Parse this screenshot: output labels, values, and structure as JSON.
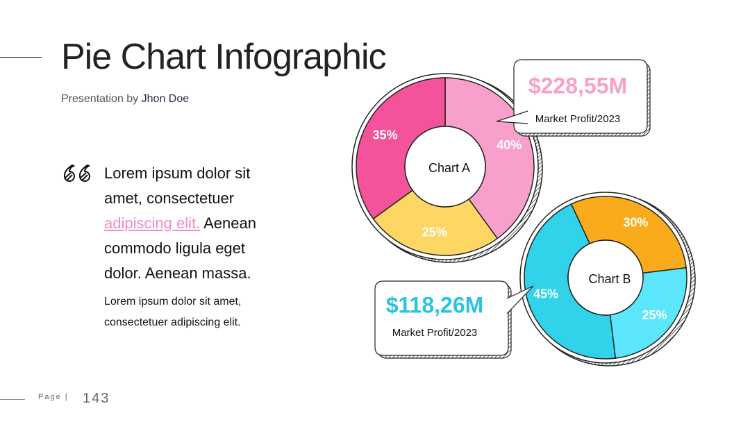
{
  "slide": {
    "title": "Pie Chart Infographic",
    "subtitle_prefix": "Presentation by",
    "subtitle_name": "Jhon Doe",
    "quote_start": "Lorem ipsum dolor sit amet, consectetuer",
    "quote_link": "adipiscing elit.",
    "quote_end": "Aenean commodo ligula eget dolor. Aenean massa.",
    "body": "Lorem ipsum dolor sit amet, consectetuer adipiscing elit.",
    "page_label": "Page",
    "page_number": "143"
  },
  "chart_data": [
    {
      "type": "pie",
      "title": "Chart A",
      "donut": true,
      "values": [
        40,
        25,
        35
      ],
      "value_labels": [
        "40%",
        "25%",
        "35%"
      ],
      "colors": [
        "#f99fcc",
        "#fdd663",
        "#f4539b"
      ],
      "annotation": {
        "amount": "$228,55M",
        "caption": "Market Profit/2023",
        "color": "#f99fcc"
      }
    },
    {
      "type": "pie",
      "title": "Chart B",
      "donut": true,
      "values": [
        30,
        25,
        45
      ],
      "value_labels": [
        "30%",
        "25%",
        "45%"
      ],
      "colors": [
        "#f9ab1c",
        "#5ce6fb",
        "#31d3ea"
      ],
      "annotation": {
        "amount": "$118,26M",
        "caption": "Market Profit/2023",
        "color": "#29c4e0"
      }
    }
  ]
}
